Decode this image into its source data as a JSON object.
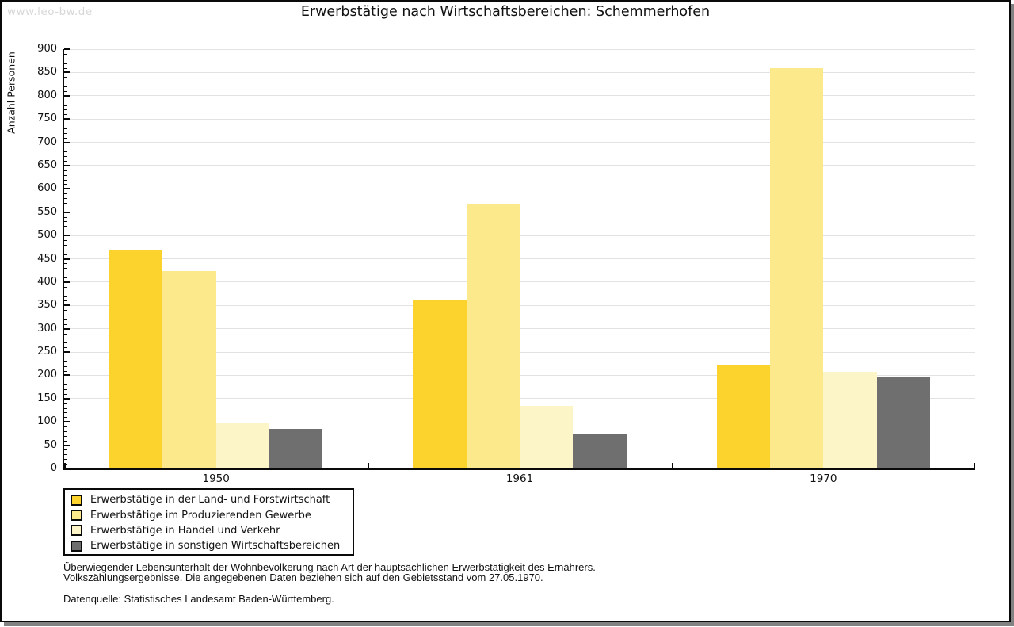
{
  "page": {
    "watermark": "www.leo-bw.de"
  },
  "chart_data": {
    "type": "bar",
    "title": "Erwerbstätige nach Wirtschaftsbereichen: Schemmerhofen",
    "ylabel": "Anzahl Personen",
    "xlabel": "",
    "categories": [
      "1950",
      "1961",
      "1970"
    ],
    "series": [
      {
        "name": "Erwerbstätige in der Land- und Forstwirtschaft",
        "color": "#FCD32D",
        "values": [
          470,
          362,
          222
        ]
      },
      {
        "name": "Erwerbstätige im Produzierenden Gewerbe",
        "color": "#FBE98B",
        "values": [
          424,
          569,
          860
        ]
      },
      {
        "name": "Erwerbstätige in Handel und Verkehr",
        "color": "#FCF5C7",
        "values": [
          97,
          134,
          207
        ]
      },
      {
        "name": "Erwerbstätige in sonstigen Wirtschaftsbereichen",
        "color": "#6F6F6F",
        "values": [
          85,
          74,
          195
        ]
      }
    ],
    "ylim": [
      0,
      900
    ],
    "ytick_step": 50,
    "y_minor_tick_step": 10,
    "grid": true,
    "gridline_color": "#e2e2e2",
    "legend_position": "bottom-left"
  },
  "footer": {
    "line1": "Überwiegender Lebensunterhalt der Wohnbevölkerung nach Art der hauptsächlichen Erwerbstätigkeit des Ernährers.",
    "line2": "Volkszählungsergebnisse. Die angegebenen Daten beziehen sich auf den Gebietsstand vom 27.05.1970.",
    "source": "Datenquelle: Statistisches Landesamt Baden-Württemberg."
  }
}
